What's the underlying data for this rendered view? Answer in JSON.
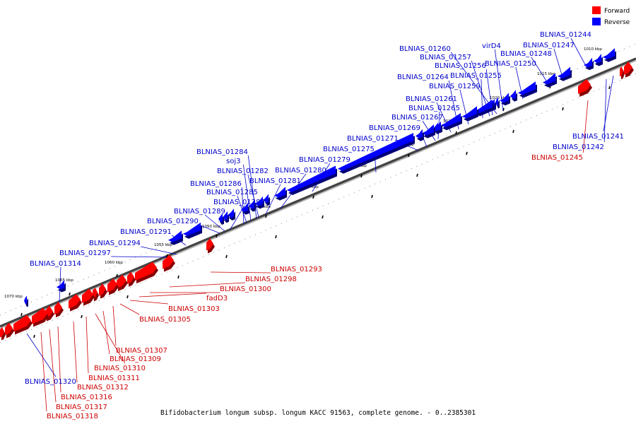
{
  "caption": "Bifidobacterium longum subsp. longum KACC 91563, complete genome. - 0..2385301",
  "legend": [
    {
      "label": "Forward",
      "color": "#ff0000"
    },
    {
      "label": "Reverse",
      "color": "#0000ff"
    }
  ],
  "scale_ticks": [
    {
      "label": "1010 kbp",
      "kbp": 1010
    },
    {
      "label": "1015 kbp",
      "kbp": 1015
    },
    {
      "label": "1020 kbp",
      "kbp": 1020
    },
    {
      "label": "1025 kbp",
      "kbp": 1025
    },
    {
      "label": "1030 kbp",
      "kbp": 1030
    },
    {
      "label": "1035 kbp",
      "kbp": 1035
    },
    {
      "label": "1040 kbp",
      "kbp": 1040
    },
    {
      "label": "1045 kbp",
      "kbp": 1045
    },
    {
      "label": "1050 kbp",
      "kbp": 1050
    },
    {
      "label": "1055 kbp",
      "kbp": 1055
    },
    {
      "label": "1060 kbp",
      "kbp": 1060
    },
    {
      "label": "1065 kbp",
      "kbp": 1065
    },
    {
      "label": "1070 kbp",
      "kbp": 1070
    }
  ],
  "reverse_labels": [
    "BLNIAS_01244",
    "BLNIAS_01247",
    "virD4",
    "BLNIAS_01248",
    "BLNIAS_01250",
    "BLNIAS_01260",
    "BLNIAS_01257",
    "BLNIAS_01256",
    "BLNIAS_01255",
    "BLNIAS_01264",
    "BLNIAS_01259",
    "BLNIAS_01261",
    "BLNIAS_01265",
    "BLNIAS_01267",
    "BLNIAS_01269",
    "BLNIAS_01271",
    "BLNIAS_01275",
    "BLNIAS_01279",
    "BLNIAS_01280",
    "BLNIAS_01281",
    "BLNIAS_01284",
    "soj3",
    "BLNIAS_01282",
    "BLNIAS_01286",
    "BLNIAS_01285",
    "BLNIAS_01287",
    "BLNIAS_01289",
    "BLNIAS_01290",
    "BLNIAS_01291",
    "BLNIAS_01294",
    "BLNIAS_01297",
    "BLNIAS_01314",
    "BLNIAS_01241",
    "BLNIAS_01242",
    "BLNIAS_01320"
  ],
  "forward_labels": [
    "BLNIAS_01245",
    "BLNIAS_01293",
    "BLNIAS_01298",
    "BLNIAS_01300",
    "fadD3",
    "BLNIAS_01303",
    "BLNIAS_01305",
    "BLNIAS_01307",
    "BLNIAS_01309",
    "BLNIAS_01310",
    "BLNIAS_01311",
    "BLNIAS_01312",
    "BLNIAS_01316",
    "BLNIAS_01317",
    "BLNIAS_01318"
  ]
}
